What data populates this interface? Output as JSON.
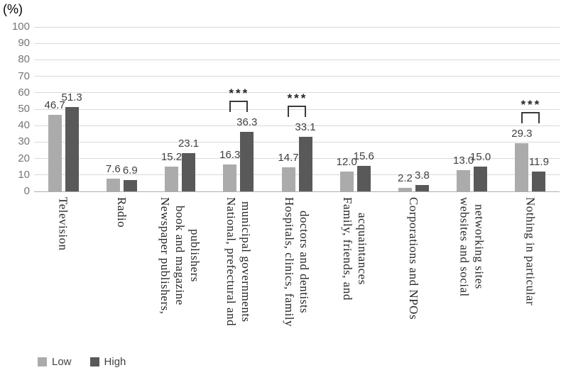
{
  "chart_data": {
    "type": "bar",
    "title": "",
    "ylabel": "(%)",
    "xlabel": "",
    "ylim": [
      0,
      100
    ],
    "ytick_step": 10,
    "grid": true,
    "legend_position": "bottom-left",
    "categories": [
      "Television",
      "Radio",
      "Newspaper publishers,\nbook and magazine\npublishers",
      "National, prefectural and\nmunicipal governments",
      "Hospitals, clinics, family\ndoctors and dentists",
      "Family, friends, and\nacquaintances",
      "Corporations and NPOs",
      "websites and social\nnetworking sites",
      "Nothing in particular"
    ],
    "series": [
      {
        "name": "Low",
        "color": "#ABABAB",
        "values": [
          46.7,
          7.6,
          15.2,
          16.3,
          14.7,
          12.0,
          2.2,
          13.0,
          29.3
        ]
      },
      {
        "name": "High",
        "color": "#595959",
        "values": [
          51.3,
          6.9,
          23.1,
          36.3,
          33.1,
          15.6,
          3.8,
          15.0,
          11.9
        ]
      }
    ],
    "significance": [
      null,
      null,
      null,
      "***",
      "***",
      null,
      null,
      null,
      "***"
    ]
  },
  "legend": {
    "items": [
      {
        "label": "Low",
        "color": "#ABABAB"
      },
      {
        "label": "High",
        "color": "#595959"
      }
    ]
  }
}
